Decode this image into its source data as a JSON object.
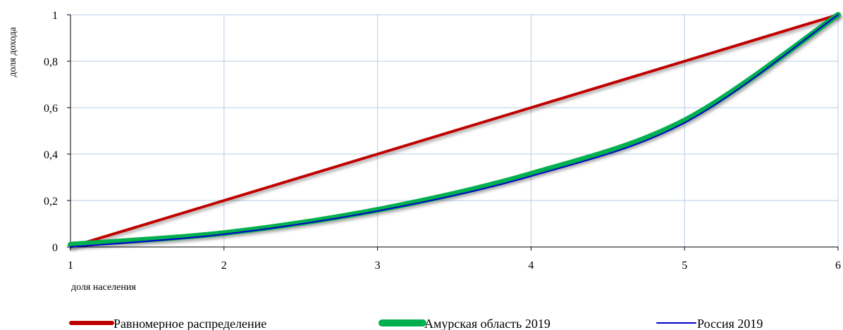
{
  "chart_data": {
    "type": "line",
    "title": "",
    "xlabel": "доля населения",
    "ylabel": "доля дохода",
    "x": [
      1,
      2,
      3,
      4,
      5,
      6
    ],
    "xlim": [
      1,
      6
    ],
    "ylim": [
      0,
      1
    ],
    "x_ticks": [
      "1",
      "2",
      "3",
      "4",
      "5",
      "6"
    ],
    "y_ticks": [
      "0",
      "0,2",
      "0,4",
      "0,6",
      "0,8",
      "1"
    ],
    "grid": true,
    "legend_position": "bottom",
    "series": [
      {
        "name": "Равномерное распределение",
        "color": "#C00000",
        "values": [
          0,
          0.2,
          0.4,
          0.6,
          0.8,
          1.0
        ]
      },
      {
        "name": "Амурская область 2019",
        "color": "#00B050",
        "values": [
          0.01,
          0.06,
          0.16,
          0.315,
          0.545,
          1.0
        ]
      },
      {
        "name": "Россия 2019",
        "color": "#0000CC",
        "values": [
          0.0,
          0.055,
          0.155,
          0.305,
          0.535,
          1.0
        ]
      }
    ]
  }
}
